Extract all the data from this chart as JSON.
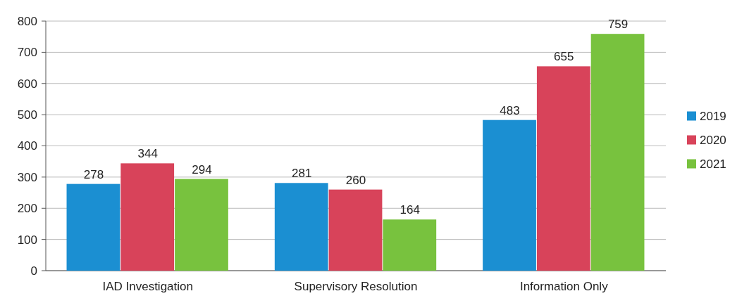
{
  "chart_data": {
    "type": "bar",
    "categories": [
      "IAD Investigation",
      "Supervisory Resolution",
      "Information Only"
    ],
    "series": [
      {
        "name": "2019",
        "color": "#1b8fd2",
        "values": [
          278,
          281,
          483
        ]
      },
      {
        "name": "2020",
        "color": "#d8435a",
        "values": [
          344,
          260,
          655
        ]
      },
      {
        "name": "2021",
        "color": "#78c23e",
        "values": [
          294,
          164,
          759
        ]
      }
    ],
    "ylim": [
      0,
      800
    ],
    "yticks": [
      0,
      100,
      200,
      300,
      400,
      500,
      600,
      700,
      800
    ],
    "grid": "y",
    "legend": "right",
    "data_labels": true
  }
}
